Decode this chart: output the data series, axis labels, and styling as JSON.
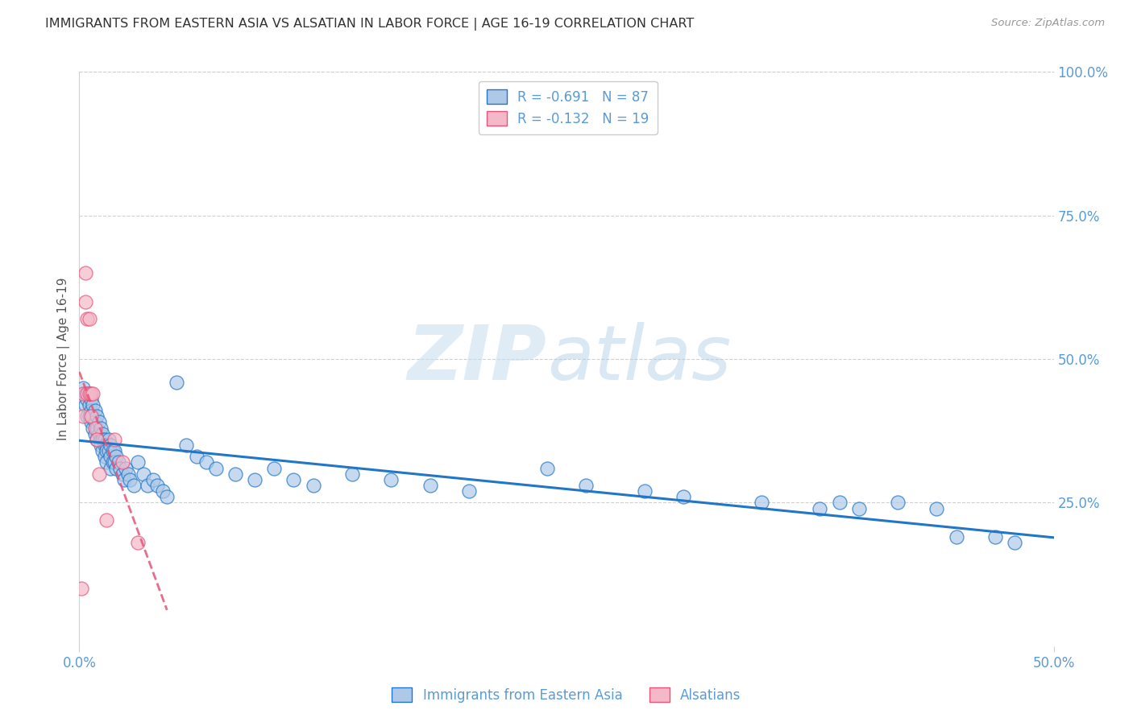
{
  "title": "IMMIGRANTS FROM EASTERN ASIA VS ALSATIAN IN LABOR FORCE | AGE 16-19 CORRELATION CHART",
  "source": "Source: ZipAtlas.com",
  "ylabel": "In Labor Force | Age 16-19",
  "xlim": [
    0.0,
    0.5
  ],
  "ylim": [
    0.0,
    1.0
  ],
  "xtick_positions": [
    0.0,
    0.5
  ],
  "xtick_labels": [
    "0.0%",
    "50.0%"
  ],
  "yticks_right": [
    0.0,
    0.25,
    0.5,
    0.75,
    1.0
  ],
  "ytick_labels_right": [
    "",
    "25.0%",
    "50.0%",
    "75.0%",
    "100.0%"
  ],
  "blue_R": -0.691,
  "blue_N": 87,
  "pink_R": -0.132,
  "pink_N": 19,
  "blue_color": "#aec9e8",
  "blue_line_color": "#2176c7",
  "pink_color": "#f5b8c8",
  "pink_line_color": "#e8537a",
  "blue_scatter_x": [
    0.002,
    0.003,
    0.003,
    0.004,
    0.004,
    0.005,
    0.005,
    0.005,
    0.006,
    0.006,
    0.006,
    0.007,
    0.007,
    0.007,
    0.008,
    0.008,
    0.008,
    0.009,
    0.009,
    0.009,
    0.01,
    0.01,
    0.011,
    0.011,
    0.011,
    0.012,
    0.012,
    0.012,
    0.013,
    0.013,
    0.013,
    0.014,
    0.014,
    0.014,
    0.015,
    0.015,
    0.016,
    0.016,
    0.016,
    0.017,
    0.017,
    0.018,
    0.018,
    0.019,
    0.019,
    0.02,
    0.021,
    0.022,
    0.023,
    0.024,
    0.025,
    0.026,
    0.028,
    0.03,
    0.033,
    0.035,
    0.038,
    0.04,
    0.043,
    0.045,
    0.05,
    0.055,
    0.06,
    0.065,
    0.07,
    0.08,
    0.09,
    0.1,
    0.11,
    0.12,
    0.14,
    0.16,
    0.18,
    0.2,
    0.24,
    0.26,
    0.29,
    0.31,
    0.35,
    0.38,
    0.39,
    0.4,
    0.42,
    0.44,
    0.45,
    0.47,
    0.48
  ],
  "blue_scatter_y": [
    0.45,
    0.44,
    0.42,
    0.43,
    0.4,
    0.44,
    0.42,
    0.4,
    0.43,
    0.41,
    0.39,
    0.42,
    0.4,
    0.38,
    0.41,
    0.39,
    0.37,
    0.4,
    0.38,
    0.36,
    0.39,
    0.37,
    0.38,
    0.36,
    0.35,
    0.37,
    0.36,
    0.34,
    0.36,
    0.35,
    0.33,
    0.35,
    0.34,
    0.32,
    0.36,
    0.34,
    0.35,
    0.33,
    0.31,
    0.34,
    0.32,
    0.34,
    0.32,
    0.33,
    0.31,
    0.32,
    0.31,
    0.3,
    0.29,
    0.31,
    0.3,
    0.29,
    0.28,
    0.32,
    0.3,
    0.28,
    0.29,
    0.28,
    0.27,
    0.26,
    0.46,
    0.35,
    0.33,
    0.32,
    0.31,
    0.3,
    0.29,
    0.31,
    0.29,
    0.28,
    0.3,
    0.29,
    0.28,
    0.27,
    0.31,
    0.28,
    0.27,
    0.26,
    0.25,
    0.24,
    0.25,
    0.24,
    0.25,
    0.24,
    0.19,
    0.19,
    0.18
  ],
  "pink_scatter_x": [
    0.001,
    0.002,
    0.002,
    0.003,
    0.003,
    0.004,
    0.004,
    0.005,
    0.005,
    0.006,
    0.006,
    0.007,
    0.008,
    0.009,
    0.01,
    0.014,
    0.018,
    0.022,
    0.03
  ],
  "pink_scatter_y": [
    0.1,
    0.44,
    0.4,
    0.65,
    0.6,
    0.57,
    0.44,
    0.57,
    0.44,
    0.44,
    0.4,
    0.44,
    0.38,
    0.36,
    0.3,
    0.22,
    0.36,
    0.32,
    0.18
  ],
  "watermark_zip": "ZIP",
  "watermark_atlas": "atlas",
  "legend_blue_label": "Immigrants from Eastern Asia",
  "legend_pink_label": "Alsatians",
  "title_color": "#333333",
  "axis_color": "#5b9bd5",
  "grid_color": "#d0d0d0",
  "background_color": "#ffffff"
}
